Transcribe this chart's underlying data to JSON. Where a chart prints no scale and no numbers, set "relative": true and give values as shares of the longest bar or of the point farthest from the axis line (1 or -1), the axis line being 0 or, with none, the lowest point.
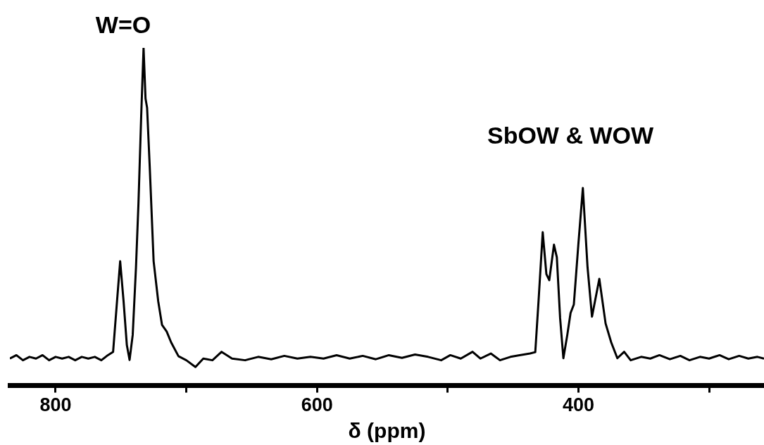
{
  "chart_data": {
    "type": "line",
    "xlabel": "δ (ppm)",
    "relative": true,
    "annotations": [
      "W=O",
      "SbOW & WOW"
    ],
    "xlim": [
      835,
      258
    ],
    "xticks": [
      800,
      {
        "value": 700,
        "label": null
      },
      600,
      {
        "value": 500,
        "label": null
      },
      400,
      {
        "value": 300,
        "label": null
      }
    ],
    "marker": "none",
    "series": [
      {
        "color": "#000000",
        "x": [
          835,
          830,
          825,
          820,
          815,
          810,
          805,
          800,
          795,
          790,
          785,
          780,
          775,
          770,
          765,
          760,
          756,
          753,
          750.6,
          748,
          745.5,
          743.4,
          741,
          738.5,
          736.6,
          734.5,
          732.7,
          731.2,
          730,
          728,
          725,
          721.5,
          718.6,
          715,
          711.6,
          706,
          700,
          693,
          687,
          680,
          673,
          665,
          655,
          645,
          635,
          625,
          615,
          605,
          595,
          585,
          575,
          565,
          555,
          545,
          535,
          525,
          515,
          505,
          498,
          490,
          481,
          475,
          467,
          460,
          452,
          445,
          437,
          433,
          430.5,
          427.3,
          424.5,
          422.3,
          418.7,
          416.5,
          414,
          411.5,
          408.5,
          406,
          403.5,
          400,
          396.6,
          393,
          389.6,
          384,
          379.2,
          374.9,
          370.2,
          365,
          360,
          352,
          345,
          338,
          330,
          322,
          315,
          307,
          300,
          292,
          285,
          277,
          270,
          263,
          258
        ],
        "values": [
          0.08,
          0.09,
          0.075,
          0.085,
          0.08,
          0.09,
          0.075,
          0.085,
          0.08,
          0.085,
          0.075,
          0.085,
          0.08,
          0.085,
          0.075,
          0.09,
          0.1,
          0.25,
          0.368,
          0.25,
          0.12,
          0.076,
          0.15,
          0.35,
          0.54,
          0.8,
          1.0,
          0.85,
          0.823,
          0.65,
          0.368,
          0.25,
          0.18,
          0.16,
          0.128,
          0.087,
          0.075,
          0.055,
          0.08,
          0.075,
          0.1,
          0.08,
          0.075,
          0.085,
          0.078,
          0.088,
          0.08,
          0.085,
          0.08,
          0.09,
          0.08,
          0.088,
          0.078,
          0.09,
          0.082,
          0.092,
          0.085,
          0.075,
          0.09,
          0.08,
          0.1,
          0.08,
          0.095,
          0.075,
          0.085,
          0.09,
          0.095,
          0.099,
          0.25,
          0.454,
          0.33,
          0.312,
          0.417,
          0.38,
          0.2,
          0.081,
          0.15,
          0.215,
          0.24,
          0.42,
          0.585,
          0.35,
          0.204,
          0.316,
          0.184,
          0.128,
          0.081,
          0.1,
          0.075,
          0.085,
          0.08,
          0.09,
          0.078,
          0.088,
          0.075,
          0.085,
          0.08,
          0.09,
          0.078,
          0.088,
          0.08,
          0.085,
          0.08
        ]
      }
    ]
  }
}
